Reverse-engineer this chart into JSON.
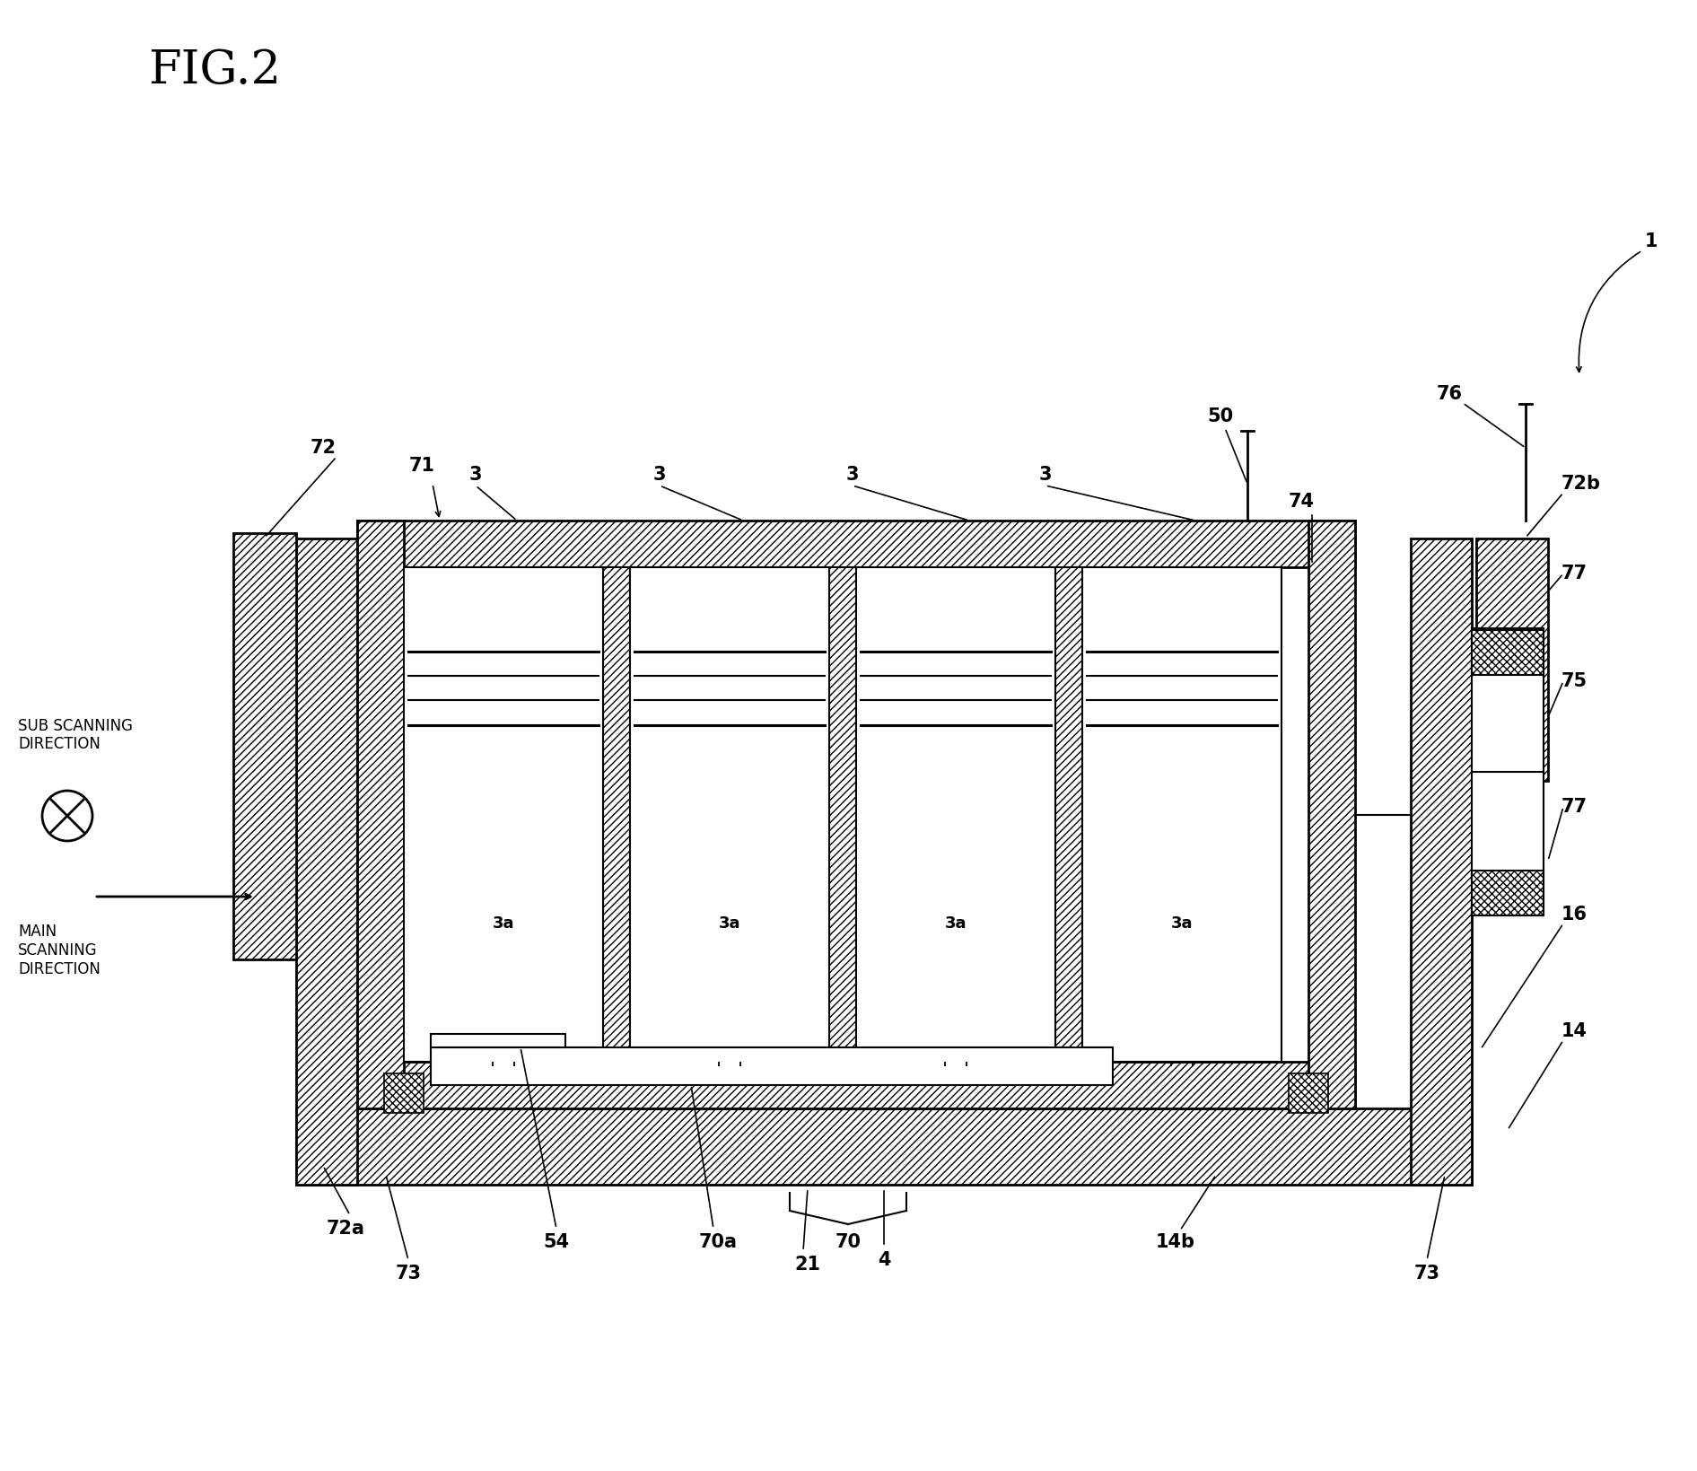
{
  "fig_width": 18.91,
  "fig_height": 16.39,
  "background": "#ffffff",
  "fig_title": "FIG.2",
  "labels": {
    "1": "1",
    "3": "3",
    "3a": "3a",
    "14": "14",
    "14b": "14b",
    "16": "16",
    "21": "21",
    "4": "4",
    "50": "50",
    "54": "54",
    "70": "70",
    "70a": "70a",
    "71": "71",
    "72": "72",
    "72a": "72a",
    "72b": "72b",
    "73": "73",
    "74": "74",
    "75": "75",
    "76": "76",
    "77": "77",
    "sub_scanning": "SUB SCANNING\nDIRECTION",
    "main_scanning": "MAIN\nSCANNING\nDIRECTION"
  }
}
